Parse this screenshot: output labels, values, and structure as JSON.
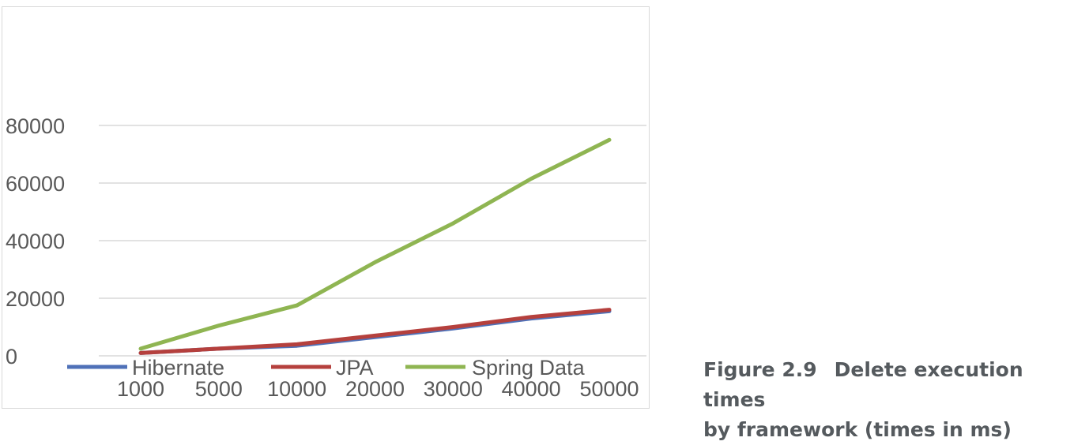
{
  "chart_data": {
    "type": "line",
    "title": "",
    "xlabel": "",
    "ylabel": "",
    "categories": [
      "1000",
      "5000",
      "10000",
      "20000",
      "30000",
      "40000",
      "50000"
    ],
    "y_ticks": [
      "0",
      "20000",
      "40000",
      "60000",
      "80000"
    ],
    "ylim": [
      0,
      80000
    ],
    "grid": true,
    "legend_position": "bottom",
    "series": [
      {
        "name": "Hibernate",
        "color": "#4f71b8",
        "values": [
          1000,
          2500,
          3500,
          6500,
          9500,
          13000,
          15500
        ]
      },
      {
        "name": "JPA",
        "color": "#b5403d",
        "values": [
          1000,
          2500,
          4000,
          7000,
          10000,
          13500,
          16000
        ]
      },
      {
        "name": "Spring Data",
        "color": "#8fb552",
        "values": [
          2500,
          10500,
          17500,
          32500,
          46000,
          61500,
          75000
        ]
      }
    ]
  },
  "caption": {
    "figure_number": "Figure 2.9",
    "line1": "Delete execution times",
    "line2": "by framework (times in ms)"
  }
}
